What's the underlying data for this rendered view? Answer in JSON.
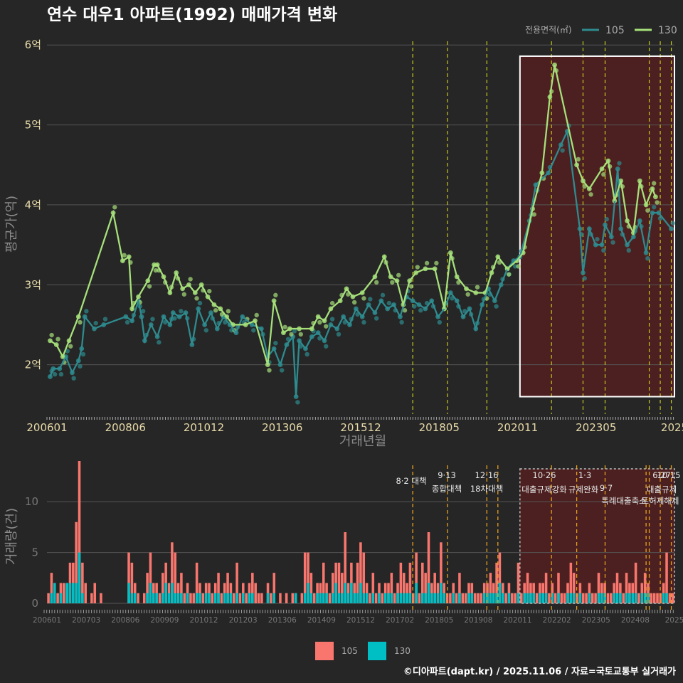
{
  "title": "연수 대우1 아파트(1992) 매매가격 변화",
  "footer": "©디아파트(dapt.kr) / 2025.11.06 / 자료=국토교통부 실거래가",
  "legend": {
    "title": "전용면적(㎡)",
    "items": [
      "105",
      "130"
    ]
  },
  "colors": {
    "s105": "#2e8b8f",
    "s130": "#a6e07a",
    "bar105": "#f8766d",
    "bar130": "#00bfc4",
    "vline": "#c8c81e",
    "vline2": "#e6a11e",
    "shade": "#5a1f1f"
  },
  "chart_data": [
    {
      "type": "line",
      "title": "연수 대우1 아파트(1992) 매매가격 변화",
      "xlabel": "거래년월",
      "ylabel": "평균가(억)",
      "xlim": [
        2006.0,
        2025.9
      ],
      "ylim": [
        1.4,
        6.1
      ],
      "x_ticks": [
        "200601",
        "200806",
        "201012",
        "201306",
        "201512",
        "201805",
        "202011",
        "202305",
        "2025"
      ],
      "y_ticks": [
        "2억",
        "3억",
        "4억",
        "5억",
        "6억"
      ],
      "y_tick_values": [
        2,
        3,
        4,
        5,
        6
      ],
      "policy_lines": [
        2017.6,
        2018.7,
        2019.95,
        2022.0,
        2023.0,
        2023.7,
        2025.1,
        2025.45,
        2025.8
      ],
      "highlight_range": [
        2021.0,
        2025.9
      ],
      "series": [
        {
          "name": "105",
          "points": [
            [
              2006.1,
              1.85
            ],
            [
              2006.2,
              1.95
            ],
            [
              2006.4,
              1.95
            ],
            [
              2006.6,
              2.1
            ],
            [
              2006.8,
              1.9
            ],
            [
              2007.0,
              2.05
            ],
            [
              2007.1,
              2.2
            ],
            [
              2007.2,
              2.6
            ],
            [
              2007.5,
              2.45
            ],
            [
              2007.8,
              2.5
            ],
            [
              2008.5,
              2.6
            ],
            [
              2008.7,
              2.55
            ],
            [
              2008.9,
              2.8
            ],
            [
              2009.0,
              2.6
            ],
            [
              2009.1,
              2.3
            ],
            [
              2009.3,
              2.5
            ],
            [
              2009.5,
              2.35
            ],
            [
              2009.7,
              2.6
            ],
            [
              2009.9,
              2.5
            ],
            [
              2010.0,
              2.65
            ],
            [
              2010.2,
              2.6
            ],
            [
              2010.4,
              2.65
            ],
            [
              2010.6,
              2.25
            ],
            [
              2010.8,
              2.7
            ],
            [
              2011.0,
              2.5
            ],
            [
              2011.2,
              2.65
            ],
            [
              2011.4,
              2.45
            ],
            [
              2011.6,
              2.6
            ],
            [
              2011.8,
              2.5
            ],
            [
              2012.0,
              2.4
            ],
            [
              2012.2,
              2.6
            ],
            [
              2012.5,
              2.5
            ],
            [
              2012.8,
              2.45
            ],
            [
              2013.0,
              2.1
            ],
            [
              2013.2,
              2.2
            ],
            [
              2013.4,
              2.0
            ],
            [
              2013.6,
              2.25
            ],
            [
              2013.8,
              2.35
            ],
            [
              2013.9,
              1.6
            ],
            [
              2014.0,
              2.3
            ],
            [
              2014.2,
              2.2
            ],
            [
              2014.4,
              2.35
            ],
            [
              2014.6,
              2.4
            ],
            [
              2014.8,
              2.3
            ],
            [
              2015.0,
              2.5
            ],
            [
              2015.2,
              2.45
            ],
            [
              2015.4,
              2.6
            ],
            [
              2015.6,
              2.5
            ],
            [
              2015.8,
              2.7
            ],
            [
              2016.0,
              2.6
            ],
            [
              2016.2,
              2.75
            ],
            [
              2016.4,
              2.65
            ],
            [
              2016.6,
              2.8
            ],
            [
              2016.8,
              2.7
            ],
            [
              2017.0,
              2.75
            ],
            [
              2017.2,
              2.6
            ],
            [
              2017.4,
              2.85
            ],
            [
              2017.6,
              2.8
            ],
            [
              2017.8,
              2.75
            ],
            [
              2018.0,
              2.7
            ],
            [
              2018.2,
              2.8
            ],
            [
              2018.4,
              2.6
            ],
            [
              2018.6,
              2.7
            ],
            [
              2018.8,
              2.9
            ],
            [
              2019.0,
              2.8
            ],
            [
              2019.2,
              2.6
            ],
            [
              2019.4,
              2.7
            ],
            [
              2019.6,
              2.45
            ],
            [
              2019.8,
              2.75
            ],
            [
              2020.0,
              2.95
            ],
            [
              2020.2,
              2.8
            ],
            [
              2020.4,
              3.0
            ],
            [
              2020.6,
              3.2
            ],
            [
              2020.8,
              3.3
            ],
            [
              2021.0,
              3.35
            ],
            [
              2021.3,
              3.8
            ],
            [
              2021.5,
              4.25
            ],
            [
              2021.9,
              4.4
            ],
            [
              2022.3,
              4.75
            ],
            [
              2022.5,
              4.92
            ],
            [
              2022.9,
              3.7
            ],
            [
              2023.0,
              3.15
            ],
            [
              2023.2,
              3.7
            ],
            [
              2023.4,
              3.5
            ],
            [
              2023.6,
              3.5
            ],
            [
              2023.7,
              3.75
            ],
            [
              2023.9,
              3.6
            ],
            [
              2024.1,
              4.45
            ],
            [
              2024.2,
              3.7
            ],
            [
              2024.4,
              3.5
            ],
            [
              2024.6,
              3.6
            ],
            [
              2024.8,
              3.8
            ],
            [
              2025.0,
              3.4
            ],
            [
              2025.2,
              3.9
            ],
            [
              2025.4,
              3.9
            ],
            [
              2025.8,
              3.7
            ]
          ]
        },
        {
          "name": "130",
          "points": [
            [
              2006.1,
              2.3
            ],
            [
              2006.3,
              2.25
            ],
            [
              2006.5,
              2.1
            ],
            [
              2006.7,
              2.3
            ],
            [
              2007.0,
              2.6
            ],
            [
              2008.1,
              3.9
            ],
            [
              2008.4,
              3.3
            ],
            [
              2008.6,
              3.35
            ],
            [
              2008.7,
              2.7
            ],
            [
              2008.9,
              2.85
            ],
            [
              2009.2,
              3.05
            ],
            [
              2009.4,
              3.25
            ],
            [
              2009.5,
              3.25
            ],
            [
              2009.7,
              3.1
            ],
            [
              2009.9,
              2.9
            ],
            [
              2010.1,
              3.15
            ],
            [
              2010.3,
              2.95
            ],
            [
              2010.5,
              3.0
            ],
            [
              2010.7,
              2.9
            ],
            [
              2010.9,
              3.0
            ],
            [
              2011.1,
              2.85
            ],
            [
              2011.3,
              2.75
            ],
            [
              2011.5,
              2.7
            ],
            [
              2011.7,
              2.6
            ],
            [
              2011.9,
              2.5
            ],
            [
              2012.3,
              2.5
            ],
            [
              2012.6,
              2.55
            ],
            [
              2013.0,
              2.0
            ],
            [
              2013.2,
              2.8
            ],
            [
              2013.5,
              2.4
            ],
            [
              2013.7,
              2.45
            ],
            [
              2014.0,
              2.45
            ],
            [
              2014.4,
              2.45
            ],
            [
              2014.6,
              2.6
            ],
            [
              2014.8,
              2.55
            ],
            [
              2015.0,
              2.7
            ],
            [
              2015.3,
              2.8
            ],
            [
              2015.5,
              2.95
            ],
            [
              2015.7,
              2.85
            ],
            [
              2016.0,
              2.9
            ],
            [
              2016.4,
              3.1
            ],
            [
              2016.7,
              3.35
            ],
            [
              2016.9,
              3.1
            ],
            [
              2017.1,
              3.05
            ],
            [
              2017.3,
              2.75
            ],
            [
              2017.5,
              3.05
            ],
            [
              2017.7,
              3.15
            ],
            [
              2018.0,
              3.2
            ],
            [
              2018.3,
              3.2
            ],
            [
              2018.6,
              2.7
            ],
            [
              2018.8,
              3.4
            ],
            [
              2019.0,
              3.1
            ],
            [
              2019.3,
              2.95
            ],
            [
              2019.6,
              2.9
            ],
            [
              2019.9,
              2.9
            ],
            [
              2020.1,
              3.15
            ],
            [
              2020.3,
              3.35
            ],
            [
              2020.6,
              3.2
            ],
            [
              2020.9,
              3.3
            ],
            [
              2021.1,
              3.4
            ],
            [
              2021.4,
              3.95
            ],
            [
              2021.7,
              4.4
            ],
            [
              2021.95,
              5.35
            ],
            [
              2022.1,
              5.75
            ],
            [
              2022.8,
              4.5
            ],
            [
              2023.0,
              4.3
            ],
            [
              2023.2,
              4.2
            ],
            [
              2023.6,
              4.45
            ],
            [
              2023.8,
              4.55
            ],
            [
              2024.0,
              4.05
            ],
            [
              2024.2,
              4.3
            ],
            [
              2024.4,
              3.8
            ],
            [
              2024.6,
              3.65
            ],
            [
              2024.8,
              4.3
            ],
            [
              2025.0,
              4.0
            ],
            [
              2025.2,
              4.2
            ],
            [
              2025.3,
              4.1
            ]
          ]
        }
      ]
    },
    {
      "type": "bar",
      "xlabel": "",
      "ylabel": "거래량(건)",
      "ylim": [
        0,
        14
      ],
      "y_ticks": [
        "0",
        "5",
        "10"
      ],
      "y_tick_values": [
        0,
        5,
        10
      ],
      "x_ticks": [
        "200601",
        "200703",
        "200806",
        "200909",
        "201012",
        "201203",
        "201306",
        "201409",
        "201512",
        "201702",
        "201805",
        "201908",
        "202011",
        "202202",
        "202305",
        "202408",
        "2025"
      ],
      "series_names": [
        "105",
        "130"
      ],
      "values_105": [
        1,
        3,
        2,
        1,
        2,
        2,
        2,
        4,
        4,
        8,
        14,
        4,
        2,
        0,
        1,
        2,
        0,
        1,
        0,
        0,
        0,
        0,
        0,
        0,
        0,
        0,
        5,
        4,
        2,
        1,
        0,
        1,
        3,
        5,
        2,
        2,
        1,
        3,
        4,
        2,
        6,
        5,
        2,
        3,
        1,
        2,
        1,
        1,
        4,
        2,
        1,
        2,
        2,
        1,
        2,
        3,
        1,
        2,
        3,
        2,
        1,
        4,
        1,
        2,
        1,
        2,
        3,
        2,
        1,
        1,
        0,
        2,
        1,
        3,
        0,
        1,
        0,
        1,
        0,
        1,
        1,
        0,
        1,
        5,
        5,
        3,
        1,
        2,
        2,
        4,
        2,
        1,
        3,
        4,
        4,
        3,
        7,
        2,
        4,
        2,
        4,
        6,
        5,
        2,
        1,
        3,
        1,
        2,
        1,
        2,
        2,
        3,
        1,
        2,
        4,
        3,
        2,
        4,
        1,
        5,
        1,
        4,
        3,
        7,
        2,
        3,
        2,
        6,
        2,
        1,
        1,
        2,
        1,
        3,
        1,
        1,
        2,
        2,
        1,
        1,
        1,
        2,
        2,
        3,
        2,
        4,
        5,
        2,
        1,
        2,
        1,
        1,
        4,
        1,
        2,
        3,
        2,
        2,
        1,
        2,
        2,
        3,
        1,
        2,
        1,
        3,
        1,
        1,
        2,
        4,
        3,
        1,
        2,
        1,
        1,
        2,
        1,
        1,
        3,
        2,
        2,
        1,
        1,
        2,
        3,
        2,
        1,
        3,
        2,
        2,
        4,
        1,
        2,
        3,
        2,
        1,
        1,
        1,
        1,
        2,
        5,
        1,
        1
      ],
      "values_130": [
        0,
        1,
        2,
        0,
        1,
        0,
        2,
        2,
        2,
        2,
        5,
        1,
        0,
        0,
        0,
        0,
        0,
        0,
        0,
        0,
        0,
        0,
        0,
        0,
        0,
        0,
        2,
        1,
        1,
        0,
        0,
        0,
        1,
        2,
        1,
        1,
        0,
        1,
        2,
        1,
        2,
        1,
        1,
        1,
        0,
        1,
        0,
        0,
        1,
        1,
        0,
        1,
        1,
        0,
        1,
        1,
        0,
        1,
        1,
        1,
        0,
        1,
        0,
        1,
        0,
        1,
        1,
        0,
        0,
        0,
        0,
        1,
        0,
        1,
        0,
        0,
        0,
        0,
        0,
        0,
        1,
        0,
        0,
        1,
        2,
        1,
        0,
        1,
        1,
        1,
        1,
        0,
        1,
        2,
        1,
        1,
        2,
        1,
        2,
        1,
        1,
        2,
        1,
        1,
        0,
        1,
        0,
        1,
        0,
        1,
        1,
        1,
        0,
        1,
        1,
        1,
        1,
        1,
        0,
        2,
        0,
        1,
        1,
        2,
        1,
        1,
        1,
        2,
        1,
        0,
        0,
        1,
        0,
        1,
        0,
        0,
        1,
        1,
        0,
        0,
        0,
        1,
        1,
        1,
        1,
        1,
        2,
        1,
        0,
        1,
        0,
        0,
        1,
        0,
        1,
        1,
        1,
        1,
        0,
        1,
        1,
        1,
        0,
        1,
        0,
        1,
        0,
        0,
        1,
        1,
        1,
        0,
        1,
        0,
        0,
        1,
        0,
        0,
        1,
        1,
        1,
        0,
        0,
        1,
        1,
        1,
        0,
        1,
        1,
        1,
        1,
        0,
        1,
        1,
        1,
        0,
        0,
        0,
        0,
        1,
        1,
        0,
        0
      ],
      "annotations": [
        {
          "date": "8·2 대책",
          "label": ""
        },
        {
          "date": "9·13",
          "label": "종합대책"
        },
        {
          "date": "12·16",
          "label": "18차대책"
        },
        {
          "date": "10·26",
          "label": "대출규제강화"
        },
        {
          "date": "1·3",
          "label": "규제완화"
        },
        {
          "date": "9·7",
          "label": "특례대출축소"
        },
        {
          "date": "6·27",
          "label": "대출규제"
        },
        {
          "date": "10·15",
          "label": "토허제해제"
        }
      ]
    }
  ]
}
